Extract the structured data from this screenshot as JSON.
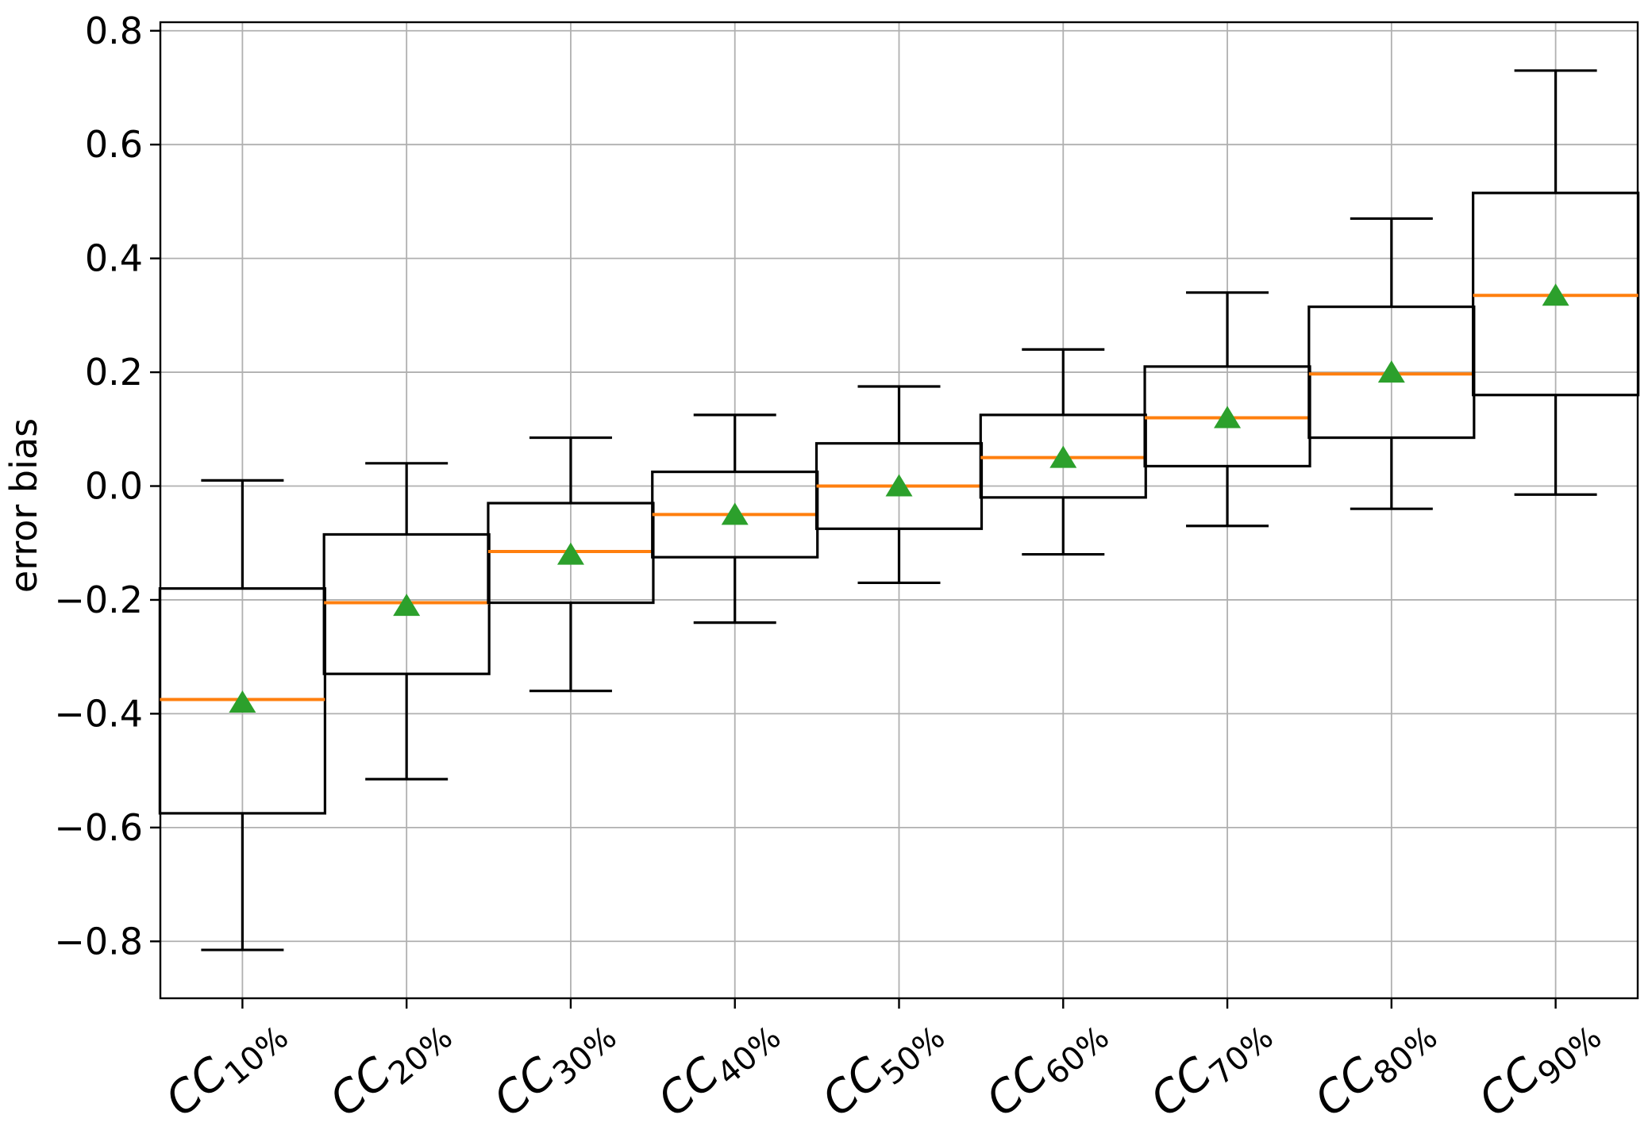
{
  "figure": {
    "background": "#ffffff"
  },
  "chart_data": {
    "type": "boxplot",
    "title": "",
    "xlabel": "",
    "ylabel": "error bias",
    "grid": true,
    "legend": null,
    "ylim": [
      -0.9,
      0.815
    ],
    "ytick_values": [
      0.8,
      0.6,
      0.4,
      0.2,
      0.0,
      -0.2,
      -0.4,
      -0.6,
      -0.8
    ],
    "ytick_labels": [
      "0.8",
      "0.6",
      "0.4",
      "0.2",
      "0.0",
      "−0.2",
      "−0.4",
      "−0.6",
      "−0.8"
    ],
    "categories": [
      "CC10%",
      "CC20%",
      "CC30%",
      "CC40%",
      "CC50%",
      "CC60%",
      "CC70%",
      "CC80%",
      "CC90%"
    ],
    "category_labels": [
      {
        "base": "CC",
        "sub": "10%"
      },
      {
        "base": "CC",
        "sub": "20%"
      },
      {
        "base": "CC",
        "sub": "30%"
      },
      {
        "base": "CC",
        "sub": "40%"
      },
      {
        "base": "CC",
        "sub": "50%"
      },
      {
        "base": "CC",
        "sub": "60%"
      },
      {
        "base": "CC",
        "sub": "70%"
      },
      {
        "base": "CC",
        "sub": "80%"
      },
      {
        "base": "CC",
        "sub": "90%"
      }
    ],
    "boxes": [
      {
        "label": "CC10%",
        "whislo": -0.815,
        "q1": -0.575,
        "med": -0.375,
        "mean": -0.38,
        "q3": -0.18,
        "whishi": 0.01
      },
      {
        "label": "CC20%",
        "whislo": -0.515,
        "q1": -0.33,
        "med": -0.205,
        "mean": -0.21,
        "q3": -0.085,
        "whishi": 0.04
      },
      {
        "label": "CC30%",
        "whislo": -0.36,
        "q1": -0.205,
        "med": -0.115,
        "mean": -0.12,
        "q3": -0.03,
        "whishi": 0.085
      },
      {
        "label": "CC40%",
        "whislo": -0.24,
        "q1": -0.125,
        "med": -0.05,
        "mean": -0.05,
        "q3": 0.025,
        "whishi": 0.125
      },
      {
        "label": "CC50%",
        "whislo": -0.17,
        "q1": -0.075,
        "med": 0.0,
        "mean": 0.0,
        "q3": 0.075,
        "whishi": 0.175
      },
      {
        "label": "CC60%",
        "whislo": -0.12,
        "q1": -0.02,
        "med": 0.05,
        "mean": 0.05,
        "q3": 0.125,
        "whishi": 0.24
      },
      {
        "label": "CC70%",
        "whislo": -0.07,
        "q1": 0.035,
        "med": 0.12,
        "mean": 0.12,
        "q3": 0.21,
        "whishi": 0.34
      },
      {
        "label": "CC80%",
        "whislo": -0.04,
        "q1": 0.085,
        "med": 0.197,
        "mean": 0.2,
        "q3": 0.315,
        "whishi": 0.47
      },
      {
        "label": "CC90%",
        "whislo": -0.015,
        "q1": 0.16,
        "med": 0.335,
        "mean": 0.335,
        "q3": 0.515,
        "whishi": 0.73
      }
    ],
    "colors": {
      "median": "#ff7f0e",
      "mean_marker": "#2ca02c",
      "box": "#000000",
      "whisker": "#000000",
      "grid": "#b0b0b0",
      "spine": "#000000",
      "text": "#000000",
      "background": "#ffffff"
    }
  }
}
